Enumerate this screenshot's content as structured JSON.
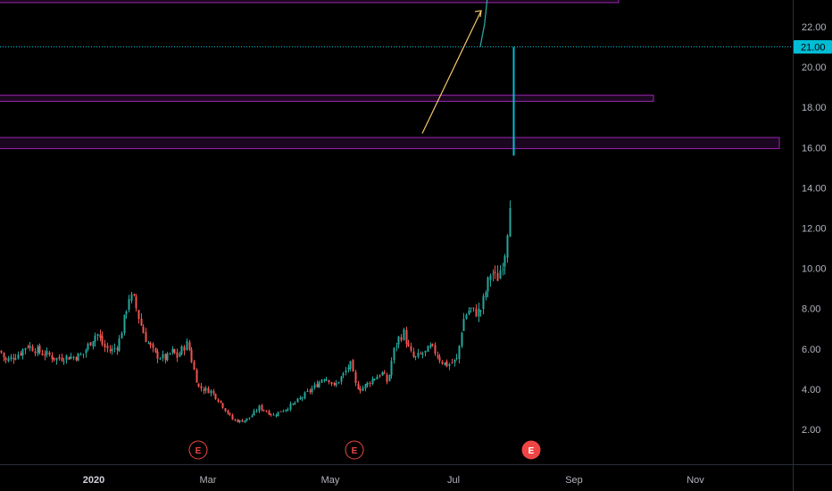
{
  "colors": {
    "background": "#000000",
    "up": "#26a69a",
    "down": "#ef5350",
    "last_price": "#00bcd4",
    "rectangle": "#9c27b0",
    "arrow": "#f5c76e",
    "forecast": "#26a69a",
    "earnings": "#f04545"
  },
  "chart_data": {
    "type": "candlestick",
    "x_axis": {
      "ticks": [
        "2020",
        "Mar",
        "May",
        "Jul",
        "Sep",
        "Nov"
      ]
    },
    "y_axis": {
      "range": [
        0.5,
        23.4
      ],
      "ticks": [
        "2.00",
        "4.00",
        "6.00",
        "8.00",
        "10.00",
        "12.00",
        "14.00",
        "16.00",
        "18.00",
        "20.00",
        "22.00"
      ]
    },
    "last_price": {
      "value": 21.0,
      "label": "21.00"
    },
    "zones": [
      {
        "low": 23.2,
        "high": 23.5
      },
      {
        "low": 18.3,
        "high": 18.6
      },
      {
        "low": 15.95,
        "high": 16.5
      }
    ],
    "arrow": {
      "from": 16.7,
      "to": 22.8
    },
    "forecast_line": {
      "from": 21.0,
      "to": 23.4
    },
    "earnings": [
      {
        "label": "E",
        "filled": false
      },
      {
        "label": "E",
        "filled": false
      },
      {
        "label": "E",
        "filled": true
      }
    ],
    "close_path": [
      [
        0,
        5.9
      ],
      [
        6,
        5.4
      ],
      [
        14,
        5.6
      ],
      [
        22,
        5.8
      ],
      [
        30,
        6.2
      ],
      [
        38,
        6.0
      ],
      [
        46,
        5.8
      ],
      [
        54,
        5.7
      ],
      [
        62,
        5.5
      ],
      [
        72,
        5.6
      ],
      [
        82,
        5.6
      ],
      [
        92,
        5.7
      ],
      [
        100,
        6.3
      ],
      [
        108,
        6.8
      ],
      [
        116,
        6.1
      ],
      [
        124,
        5.9
      ],
      [
        132,
        6.2
      ],
      [
        138,
        7.3
      ],
      [
        144,
        8.6
      ],
      [
        150,
        8.4
      ],
      [
        156,
        7.4
      ],
      [
        162,
        6.6
      ],
      [
        168,
        6.1
      ],
      [
        174,
        5.7
      ],
      [
        180,
        5.6
      ],
      [
        186,
        5.5
      ],
      [
        192,
        5.9
      ],
      [
        198,
        5.6
      ],
      [
        204,
        6.0
      ],
      [
        210,
        6.3
      ],
      [
        216,
        5.1
      ],
      [
        222,
        4.1
      ],
      [
        228,
        4.0
      ],
      [
        236,
        3.9
      ],
      [
        244,
        3.5
      ],
      [
        252,
        3.0
      ],
      [
        260,
        2.5
      ],
      [
        268,
        2.4
      ],
      [
        276,
        2.5
      ],
      [
        282,
        2.7
      ],
      [
        290,
        3.1
      ],
      [
        298,
        2.9
      ],
      [
        306,
        2.7
      ],
      [
        314,
        2.9
      ],
      [
        322,
        3.1
      ],
      [
        330,
        3.3
      ],
      [
        338,
        3.6
      ],
      [
        346,
        3.9
      ],
      [
        354,
        4.2
      ],
      [
        362,
        4.6
      ],
      [
        368,
        4.5
      ],
      [
        374,
        4.1
      ],
      [
        380,
        4.5
      ],
      [
        386,
        4.8
      ],
      [
        392,
        5.3
      ],
      [
        398,
        4.2
      ],
      [
        404,
        4.0
      ],
      [
        412,
        4.3
      ],
      [
        420,
        4.6
      ],
      [
        428,
        4.8
      ],
      [
        434,
        4.3
      ],
      [
        440,
        5.8
      ],
      [
        446,
        6.5
      ],
      [
        452,
        6.8
      ],
      [
        458,
        5.9
      ],
      [
        464,
        5.5
      ],
      [
        470,
        5.7
      ],
      [
        476,
        5.8
      ],
      [
        482,
        6.1
      ],
      [
        488,
        5.8
      ],
      [
        494,
        5.4
      ],
      [
        500,
        5.2
      ],
      [
        506,
        5.3
      ],
      [
        512,
        5.5
      ],
      [
        516,
        6.8
      ],
      [
        520,
        7.6
      ],
      [
        526,
        8.0
      ],
      [
        532,
        7.8
      ],
      [
        538,
        7.9
      ],
      [
        544,
        8.9
      ],
      [
        550,
        9.9
      ],
      [
        556,
        9.4
      ],
      [
        562,
        10.2
      ],
      [
        566,
        11.0
      ],
      [
        570,
        13.0
      ],
      [
        573,
        15.0
      ],
      [
        575,
        16.0
      ],
      [
        577,
        16.9
      ]
    ]
  }
}
